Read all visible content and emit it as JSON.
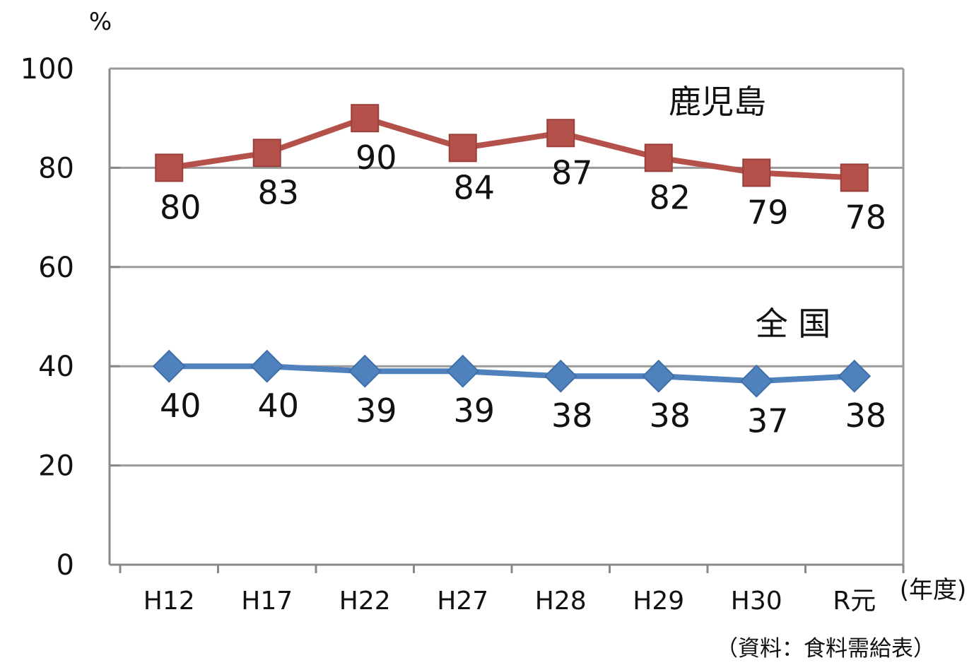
{
  "chart_data": {
    "type": "line",
    "unit_label": "%",
    "x_unit_label": "(年度)",
    "source_note": "（資料：食料需給表）",
    "categories": [
      "H12",
      "H17",
      "H22",
      "H27",
      "H28",
      "H29",
      "H30",
      "R元"
    ],
    "ylim": [
      0,
      100
    ],
    "yticks": [
      0,
      20,
      40,
      60,
      80,
      100
    ],
    "grid": true,
    "series": [
      {
        "name": "鹿児島",
        "values": [
          80,
          83,
          90,
          84,
          87,
          82,
          79,
          78
        ],
        "color": "#b5514b",
        "marker": "square"
      },
      {
        "name": "全 国",
        "values": [
          40,
          40,
          39,
          39,
          38,
          38,
          37,
          38
        ],
        "color": "#4f81bd",
        "marker": "diamond"
      }
    ]
  }
}
